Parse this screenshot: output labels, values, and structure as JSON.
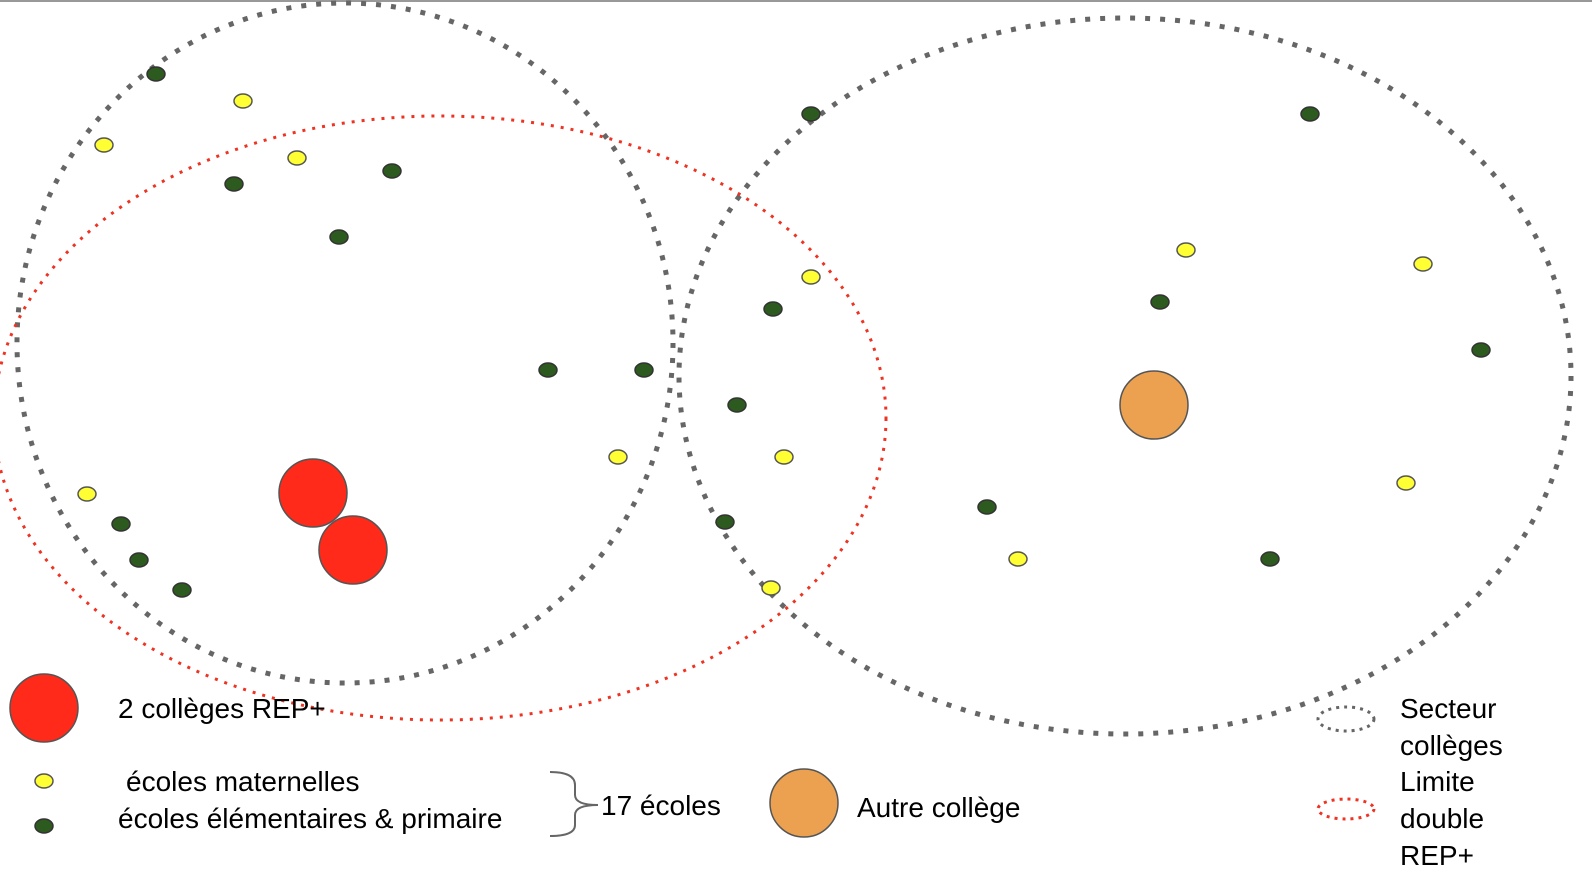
{
  "legend": {
    "rep_colleges": "2 collèges REP+",
    "ecoles_maternelles": "écoles maternelles",
    "ecoles_elementaires": "écoles élémentaires & primaire",
    "total_ecoles": "17 écoles",
    "autre_college": "Autre collège",
    "secteur_colleges": "Secteur collèges",
    "limite_rep": "Limite double REP+"
  }
}
